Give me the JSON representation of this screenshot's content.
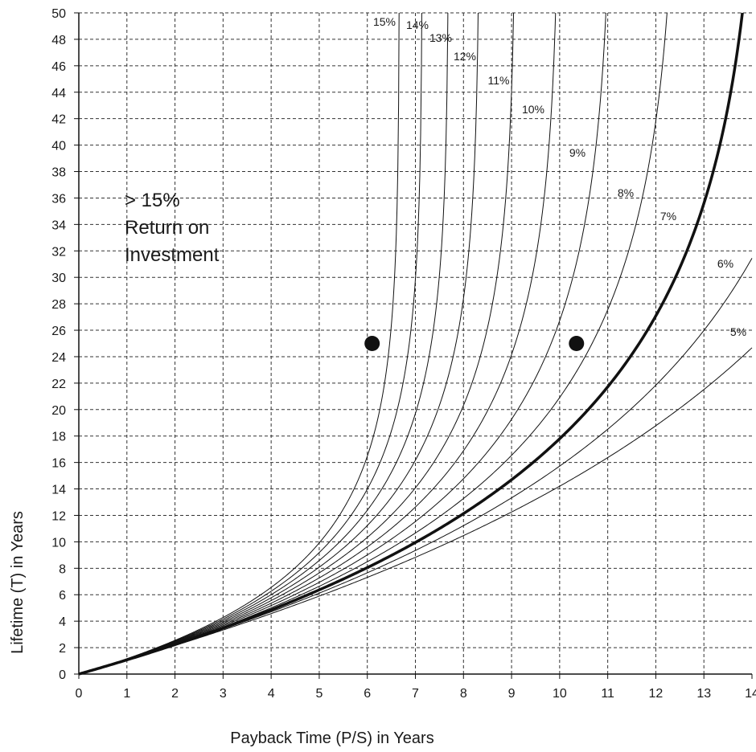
{
  "chart_data": {
    "type": "line",
    "xlabel": "Payback Time (P/S) in Years",
    "ylabel": "Lifetime (T) in Years",
    "xlim": [
      0,
      14
    ],
    "ylim": [
      0,
      50
    ],
    "x_ticks": [
      "0",
      "1",
      "2",
      "3",
      "4",
      "5",
      "6",
      "7",
      "8",
      "9",
      "10",
      "11",
      "12",
      "13",
      "14"
    ],
    "y_ticks": [
      "0",
      "2",
      "4",
      "6",
      "8",
      "10",
      "12",
      "14",
      "16",
      "18",
      "20",
      "22",
      "24",
      "26",
      "28",
      "30",
      "32",
      "34",
      "36",
      "38",
      "40",
      "42",
      "44",
      "46",
      "48",
      "50"
    ],
    "grid": true,
    "highlighted_rate": 7,
    "series": [
      {
        "name": "5%",
        "rate": 5
      },
      {
        "name": "6%",
        "rate": 6
      },
      {
        "name": "7%",
        "rate": 7
      },
      {
        "name": "8%",
        "rate": 8
      },
      {
        "name": "9%",
        "rate": 9
      },
      {
        "name": "10%",
        "rate": 10
      },
      {
        "name": "11%",
        "rate": 11
      },
      {
        "name": "12%",
        "rate": 12
      },
      {
        "name": "13%",
        "rate": 13
      },
      {
        "name": "14%",
        "rate": 14
      },
      {
        "name": "15%",
        "rate": 15
      }
    ],
    "points": [
      {
        "x": 6.1,
        "y": 25
      },
      {
        "x": 10.35,
        "y": 25
      }
    ],
    "annotation": [
      "> 15%",
      "Return on",
      "Investment"
    ]
  }
}
